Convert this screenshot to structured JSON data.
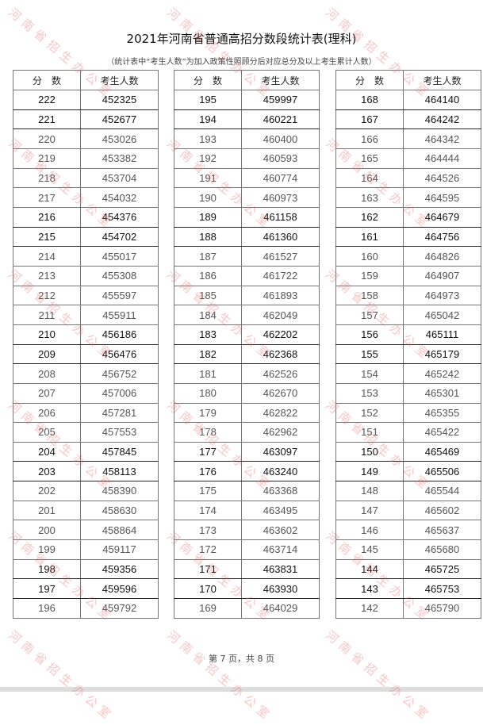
{
  "title": "2021年河南省普通高招分数段统计表(理科)",
  "subtitle": "（统计表中“考生人数”为加入政策性照顾分后对应总分及以上考生累计人数）",
  "headers": {
    "score": "分　数",
    "count": "考生人数"
  },
  "watermark": "河南省招生办公室",
  "footer": "第 7 页，共 8 页",
  "tables": [
    {
      "rows": [
        [
          222,
          452325
        ],
        [
          221,
          452677
        ],
        [
          220,
          453026
        ],
        [
          219,
          453382
        ],
        [
          218,
          453704
        ],
        [
          217,
          454032
        ],
        [
          216,
          454376
        ],
        [
          215,
          454702
        ],
        [
          214,
          455017
        ],
        [
          213,
          455308
        ],
        [
          212,
          455597
        ],
        [
          211,
          455911
        ],
        [
          210,
          456186
        ],
        [
          209,
          456476
        ],
        [
          208,
          456752
        ],
        [
          207,
          457006
        ],
        [
          206,
          457281
        ],
        [
          205,
          457553
        ],
        [
          204,
          457845
        ],
        [
          203,
          458113
        ],
        [
          202,
          458390
        ],
        [
          201,
          458630
        ],
        [
          200,
          458864
        ],
        [
          199,
          459117
        ],
        [
          198,
          459356
        ],
        [
          197,
          459596
        ],
        [
          196,
          459792
        ]
      ]
    },
    {
      "rows": [
        [
          195,
          459997
        ],
        [
          194,
          460221
        ],
        [
          193,
          460400
        ],
        [
          192,
          460593
        ],
        [
          191,
          460774
        ],
        [
          190,
          460973
        ],
        [
          189,
          461158
        ],
        [
          188,
          461360
        ],
        [
          187,
          461527
        ],
        [
          186,
          461722
        ],
        [
          185,
          461893
        ],
        [
          184,
          462049
        ],
        [
          183,
          462202
        ],
        [
          182,
          462368
        ],
        [
          181,
          462526
        ],
        [
          180,
          462670
        ],
        [
          179,
          462822
        ],
        [
          178,
          462962
        ],
        [
          177,
          463097
        ],
        [
          176,
          463240
        ],
        [
          175,
          463368
        ],
        [
          174,
          463495
        ],
        [
          173,
          463602
        ],
        [
          172,
          463714
        ],
        [
          171,
          463831
        ],
        [
          170,
          463930
        ],
        [
          169,
          464029
        ]
      ]
    },
    {
      "rows": [
        [
          168,
          464140
        ],
        [
          167,
          464242
        ],
        [
          166,
          464342
        ],
        [
          165,
          464444
        ],
        [
          164,
          464526
        ],
        [
          163,
          464595
        ],
        [
          162,
          464679
        ],
        [
          161,
          464756
        ],
        [
          160,
          464826
        ],
        [
          159,
          464907
        ],
        [
          158,
          464973
        ],
        [
          157,
          465042
        ],
        [
          156,
          465111
        ],
        [
          155,
          465179
        ],
        [
          154,
          465242
        ],
        [
          153,
          465301
        ],
        [
          152,
          465355
        ],
        [
          151,
          465422
        ],
        [
          150,
          465469
        ],
        [
          149,
          465506
        ],
        [
          148,
          465544
        ],
        [
          147,
          465602
        ],
        [
          146,
          465637
        ],
        [
          145,
          465680
        ],
        [
          144,
          465725
        ],
        [
          143,
          465753
        ],
        [
          142,
          465790
        ]
      ]
    }
  ]
}
